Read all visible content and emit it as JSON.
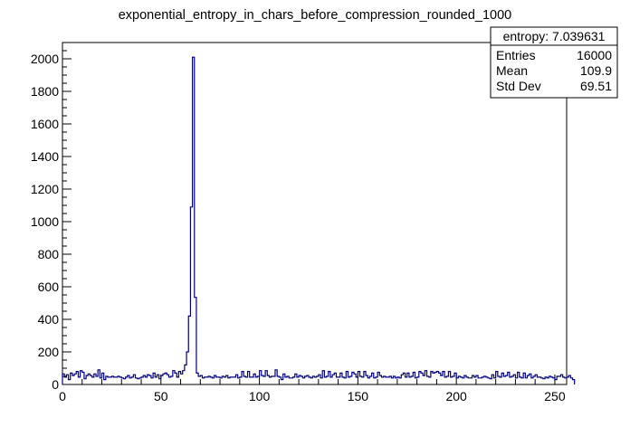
{
  "chart_data": {
    "type": "bar",
    "title": "exponential_entropy_in_chars_before_compression_rounded_1000",
    "xlabel": "",
    "ylabel": "",
    "xlim": [
      0,
      256
    ],
    "ylim": [
      0,
      2100
    ],
    "x_ticks": [
      0,
      50,
      100,
      150,
      200,
      250
    ],
    "y_ticks": [
      0,
      200,
      400,
      600,
      800,
      1000,
      1200,
      1400,
      1600,
      1800,
      2000
    ],
    "line_color": "#000080",
    "bin_width": 1,
    "values": [
      65,
      45,
      60,
      30,
      70,
      55,
      65,
      80,
      45,
      85,
      75,
      35,
      55,
      65,
      55,
      45,
      65,
      50,
      90,
      40,
      70,
      30,
      50,
      45,
      45,
      50,
      45,
      45,
      50,
      45,
      40,
      35,
      45,
      55,
      40,
      45,
      60,
      40,
      35,
      40,
      45,
      55,
      45,
      60,
      55,
      40,
      70,
      45,
      60,
      35,
      55,
      65,
      70,
      60,
      45,
      50,
      85,
      70,
      45,
      80,
      65,
      85,
      120,
      200,
      420,
      1090,
      2010,
      535,
      70,
      50,
      55,
      40,
      45,
      45,
      50,
      45,
      40,
      55,
      45,
      45,
      40,
      50,
      45,
      55,
      40,
      45,
      45,
      45,
      60,
      40,
      45,
      80,
      50,
      45,
      80,
      45,
      45,
      65,
      45,
      50,
      85,
      55,
      50,
      85,
      55,
      45,
      50,
      50,
      90,
      50,
      45,
      30,
      65,
      45,
      50,
      40,
      40,
      45,
      65,
      45,
      55,
      50,
      40,
      50,
      55,
      45,
      40,
      50,
      45,
      50,
      60,
      40,
      85,
      45,
      50,
      80,
      45,
      60,
      70,
      45,
      45,
      70,
      45,
      40,
      80,
      45,
      50,
      75,
      65,
      45,
      80,
      50,
      45,
      80,
      55,
      40,
      50,
      70,
      40,
      45,
      75,
      55,
      45,
      50,
      45,
      45,
      50,
      40,
      50,
      40,
      45,
      40,
      60,
      70,
      45,
      70,
      45,
      50,
      75,
      40,
      45,
      80,
      70,
      55,
      85,
      50,
      45,
      80,
      70,
      75,
      80,
      70,
      55,
      80,
      45,
      50,
      80,
      45,
      50,
      70,
      40,
      50,
      45,
      40,
      55,
      45,
      40,
      40,
      55,
      45,
      55,
      40,
      40,
      45,
      50,
      45,
      40,
      35,
      60,
      40,
      80,
      50,
      45,
      70,
      50,
      55,
      75,
      45,
      50,
      60,
      40,
      75,
      45,
      40,
      70,
      40,
      55,
      65,
      40,
      50,
      60,
      45,
      45,
      40,
      35,
      45,
      40,
      50,
      45,
      40,
      30,
      50,
      50,
      60,
      45,
      40,
      45,
      55,
      40,
      30
    ]
  },
  "stats": {
    "name_label": "entropy: 7.039631",
    "rows": [
      {
        "label": "Entries",
        "value": "16000"
      },
      {
        "label": "Mean",
        "value": "109.9"
      },
      {
        "label": "Std Dev",
        "value": "69.51"
      }
    ]
  }
}
